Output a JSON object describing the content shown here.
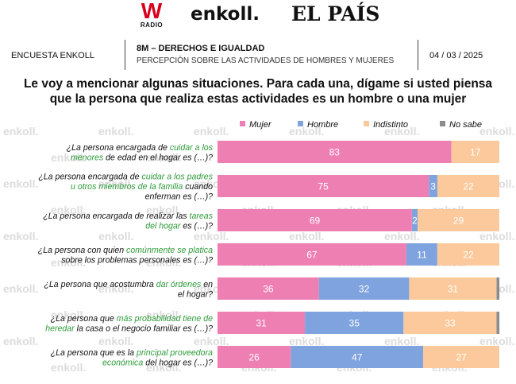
{
  "logos": {
    "w": "W",
    "w_sub": "RADIO",
    "enkoll": "enkoll.",
    "pais": "EL PAÍS"
  },
  "header": {
    "left": "ENCUESTA ENKOLL",
    "title": "8M – DERECHOS E IGUALDAD",
    "subtitle": "PERCEPCIÓN SOBRE LAS ACTIVIDADES DE HOMBRES Y MUJERES",
    "date": "04 / 03 / 2025"
  },
  "question": {
    "line1": "Le voy a mencionar algunas situaciones. Para cada una, dígame si usted piensa",
    "line2": "que la persona que realiza estas actividades es un hombre o una mujer"
  },
  "watermark": "enkoll.",
  "colors": {
    "Mujer": "#ee7fb3",
    "Hombre": "#7fa3de",
    "Indistinto": "#fbc99b",
    "No sabe": "#8c8c8c"
  },
  "chart_data": {
    "type": "bar",
    "orientation": "horizontal",
    "stacked": true,
    "xlim": [
      0,
      100
    ],
    "legend": "top-right",
    "series": [
      {
        "name": "Mujer",
        "values": [
          83,
          75,
          69,
          67,
          36,
          31,
          26
        ]
      },
      {
        "name": "Hombre",
        "values": [
          0,
          3,
          2,
          11,
          32,
          35,
          47
        ]
      },
      {
        "name": "Indistinto",
        "values": [
          17,
          22,
          29,
          22,
          31,
          33,
          27
        ]
      },
      {
        "name": "No sabe",
        "values": [
          0,
          0,
          0,
          0,
          1,
          1,
          0
        ]
      }
    ],
    "categories": [
      {
        "lines": [
          [
            {
              "t": "¿La persona encargada de ",
              "h": false
            },
            {
              "t": "cuidar a los",
              "h": true
            }
          ],
          [
            {
              "t": "menores",
              "h": true
            },
            {
              "t": " de edad en el hogar es (…)?",
              "h": false
            }
          ]
        ]
      },
      {
        "lines": [
          [
            {
              "t": "¿La persona encargada de ",
              "h": false
            },
            {
              "t": "cuidar a los padres",
              "h": true
            }
          ],
          [
            {
              "t": "u otros miembros de la familia",
              "h": true
            },
            {
              "t": " cuando",
              "h": false
            }
          ],
          [
            {
              "t": "enferman es (…)?",
              "h": false
            }
          ]
        ]
      },
      {
        "lines": [
          [
            {
              "t": "¿La persona encargada de realizar las ",
              "h": false
            },
            {
              "t": "tareas",
              "h": true
            }
          ],
          [
            {
              "t": "del hogar",
              "h": true
            },
            {
              "t": " es (…)?",
              "h": false
            }
          ]
        ]
      },
      {
        "lines": [
          [
            {
              "t": "¿La persona con quien ",
              "h": false
            },
            {
              "t": "comúnmente se platica",
              "h": true
            }
          ],
          [
            {
              "t": "sobre los problemas personales es (…)?",
              "h": false
            }
          ]
        ]
      },
      {
        "lines": [
          [
            {
              "t": "¿La persona que acostumbra ",
              "h": false
            },
            {
              "t": "dar órdenes",
              "h": true
            },
            {
              "t": " en",
              "h": false
            }
          ],
          [
            {
              "t": "el hogar?",
              "h": false
            }
          ]
        ]
      },
      {
        "lines": [
          [
            {
              "t": "¿La persona que ",
              "h": false
            },
            {
              "t": "más probabilidad tiene de",
              "h": true
            }
          ],
          [
            {
              "t": "heredar",
              "h": true
            },
            {
              "t": " la casa o el negocio familiar es (…)?",
              "h": false
            }
          ]
        ]
      },
      {
        "lines": [
          [
            {
              "t": "¿La persona que es la ",
              "h": false
            },
            {
              "t": "principal proveedora",
              "h": true
            }
          ],
          [
            {
              "t": "económica",
              "h": true
            },
            {
              "t": " del hogar es (…)?",
              "h": false
            }
          ]
        ]
      }
    ]
  }
}
